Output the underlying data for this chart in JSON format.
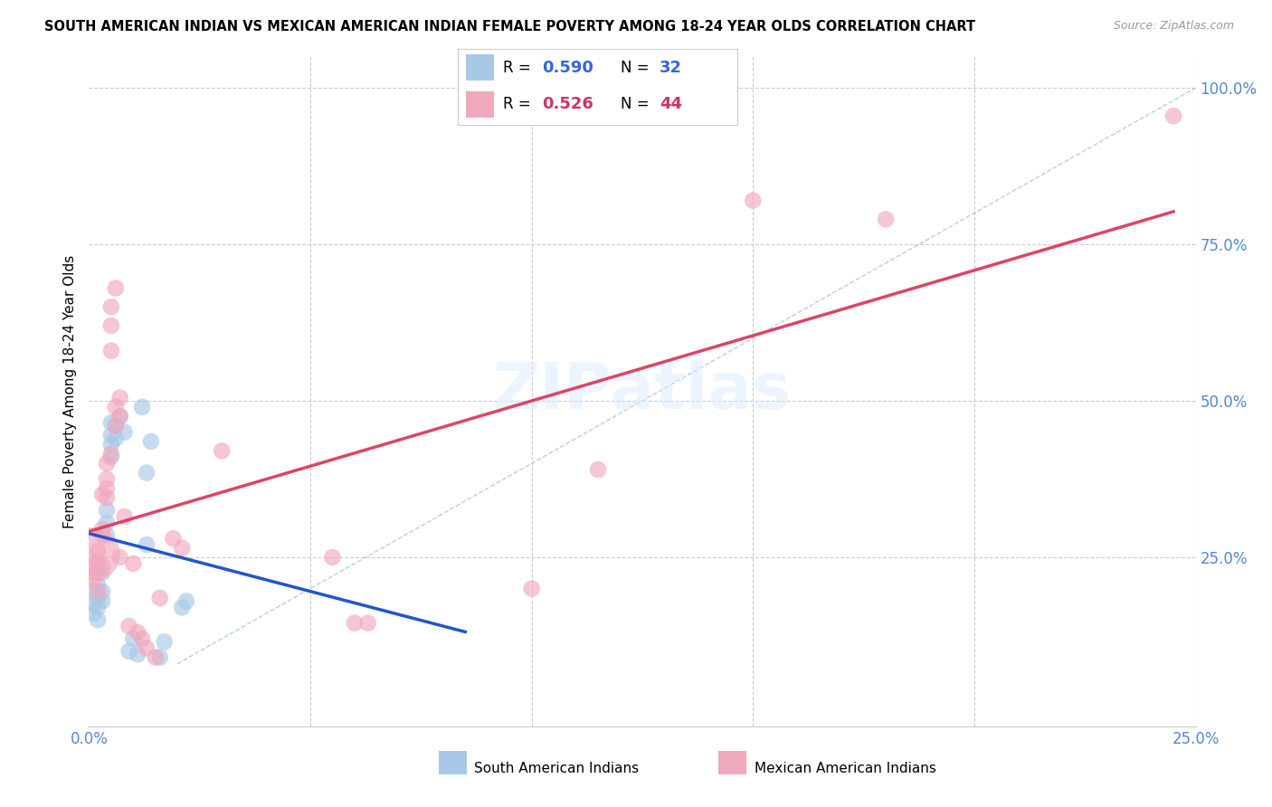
{
  "title": "SOUTH AMERICAN INDIAN VS MEXICAN AMERICAN INDIAN FEMALE POVERTY AMONG 18-24 YEAR OLDS CORRELATION CHART",
  "source": "Source: ZipAtlas.com",
  "ylabel": "Female Poverty Among 18-24 Year Olds",
  "xlim": [
    0.0,
    0.25
  ],
  "ylim": [
    -0.02,
    1.05
  ],
  "ytick_labels": [
    "25.0%",
    "50.0%",
    "75.0%",
    "100.0%"
  ],
  "ytick_positions": [
    0.25,
    0.5,
    0.75,
    1.0
  ],
  "background_color": "#ffffff",
  "grid_color": "#cccccc",
  "blue_R": 0.59,
  "blue_N": 32,
  "pink_R": 0.526,
  "pink_N": 44,
  "blue_color": "#a8c8e8",
  "pink_color": "#f0a8bc",
  "blue_line_color": "#2255cc",
  "pink_line_color": "#dd4466",
  "diagonal_color": "#99bbdd",
  "legend_label_blue": "South American Indians",
  "legend_label_pink": "Mexican American Indians",
  "blue_points": [
    [
      0.001,
      0.195
    ],
    [
      0.001,
      0.175
    ],
    [
      0.001,
      0.16
    ],
    [
      0.002,
      0.185
    ],
    [
      0.002,
      0.15
    ],
    [
      0.002,
      0.205
    ],
    [
      0.002,
      0.17
    ],
    [
      0.003,
      0.225
    ],
    [
      0.003,
      0.195
    ],
    [
      0.003,
      0.18
    ],
    [
      0.004,
      0.305
    ],
    [
      0.004,
      0.285
    ],
    [
      0.004,
      0.325
    ],
    [
      0.005,
      0.43
    ],
    [
      0.005,
      0.41
    ],
    [
      0.005,
      0.445
    ],
    [
      0.005,
      0.465
    ],
    [
      0.006,
      0.46
    ],
    [
      0.006,
      0.44
    ],
    [
      0.007,
      0.475
    ],
    [
      0.008,
      0.45
    ],
    [
      0.009,
      0.1
    ],
    [
      0.01,
      0.12
    ],
    [
      0.011,
      0.095
    ],
    [
      0.012,
      0.49
    ],
    [
      0.013,
      0.385
    ],
    [
      0.013,
      0.27
    ],
    [
      0.014,
      0.435
    ],
    [
      0.016,
      0.09
    ],
    [
      0.017,
      0.115
    ],
    [
      0.021,
      0.17
    ],
    [
      0.022,
      0.18
    ]
  ],
  "pink_points": [
    [
      0.001,
      0.255
    ],
    [
      0.001,
      0.235
    ],
    [
      0.001,
      0.215
    ],
    [
      0.002,
      0.245
    ],
    [
      0.002,
      0.225
    ],
    [
      0.002,
      0.26
    ],
    [
      0.002,
      0.195
    ],
    [
      0.003,
      0.235
    ],
    [
      0.003,
      0.35
    ],
    [
      0.003,
      0.285
    ],
    [
      0.003,
      0.295
    ],
    [
      0.004,
      0.36
    ],
    [
      0.004,
      0.375
    ],
    [
      0.004,
      0.4
    ],
    [
      0.004,
      0.345
    ],
    [
      0.005,
      0.415
    ],
    [
      0.005,
      0.58
    ],
    [
      0.005,
      0.62
    ],
    [
      0.005,
      0.65
    ],
    [
      0.006,
      0.68
    ],
    [
      0.006,
      0.49
    ],
    [
      0.006,
      0.46
    ],
    [
      0.007,
      0.505
    ],
    [
      0.007,
      0.475
    ],
    [
      0.007,
      0.25
    ],
    [
      0.008,
      0.315
    ],
    [
      0.009,
      0.14
    ],
    [
      0.01,
      0.24
    ],
    [
      0.011,
      0.13
    ],
    [
      0.012,
      0.12
    ],
    [
      0.013,
      0.105
    ],
    [
      0.015,
      0.09
    ],
    [
      0.016,
      0.185
    ],
    [
      0.019,
      0.28
    ],
    [
      0.021,
      0.265
    ],
    [
      0.03,
      0.42
    ],
    [
      0.055,
      0.25
    ],
    [
      0.06,
      0.145
    ],
    [
      0.063,
      0.145
    ],
    [
      0.1,
      0.2
    ],
    [
      0.115,
      0.39
    ],
    [
      0.15,
      0.82
    ],
    [
      0.18,
      0.79
    ],
    [
      0.245,
      0.955
    ]
  ],
  "blue_sizes_uniform": 180,
  "pink_sizes_uniform": 180,
  "pink_large_idx": 0,
  "pink_large_size": 1800,
  "blue_line_x": [
    0.0,
    0.085
  ],
  "pink_line_x": [
    0.0,
    0.245
  ]
}
